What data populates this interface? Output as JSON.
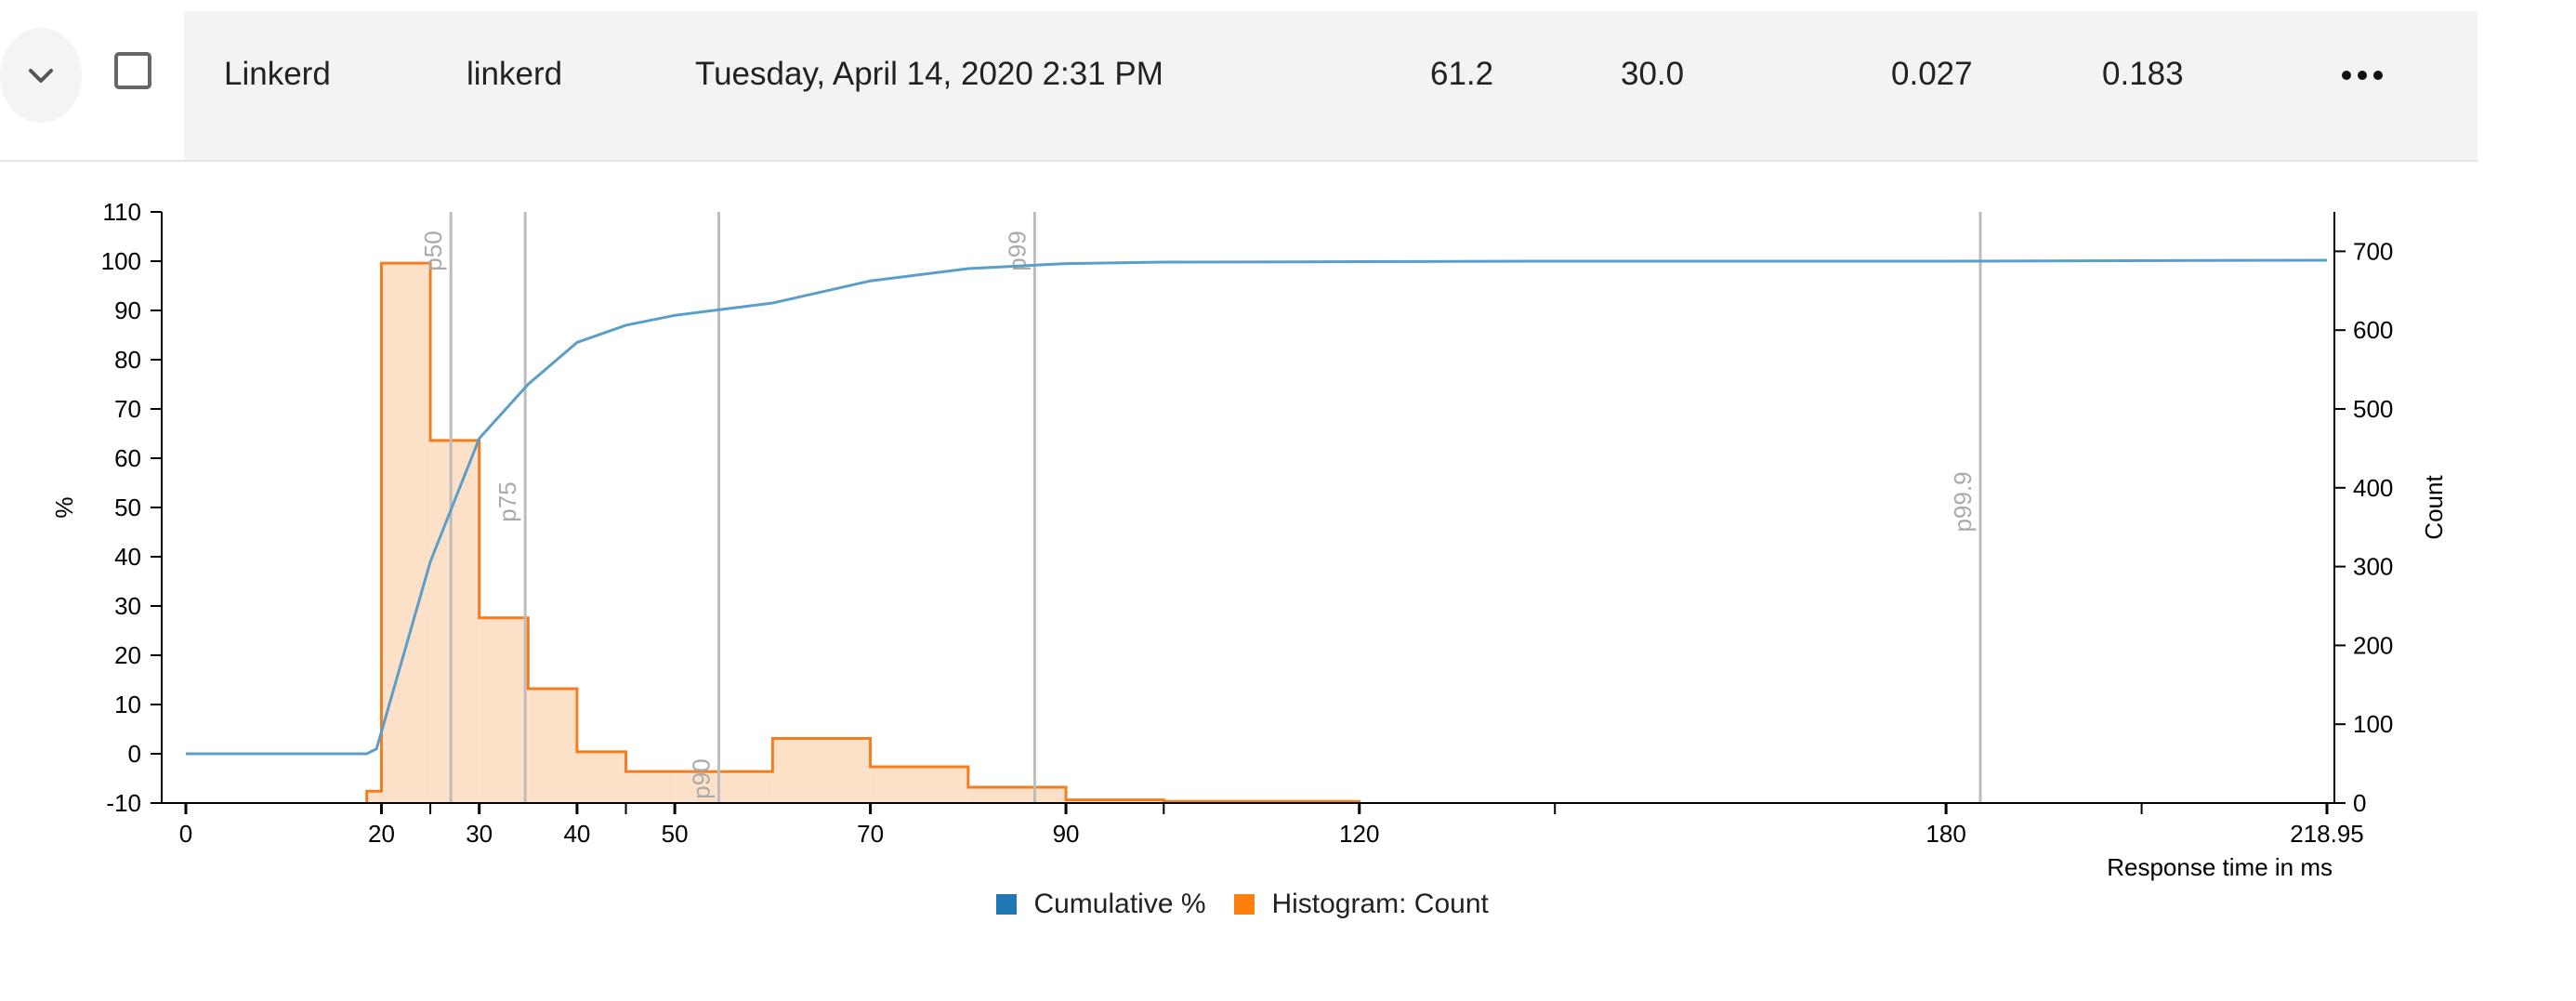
{
  "row": {
    "name": "Linkerd",
    "label": "linkerd",
    "timestamp": "Tuesday, April 14, 2020 2:31 PM",
    "value_1": "61.2",
    "value_2": "30.0",
    "value_3": "0.027",
    "value_4": "0.183",
    "icons": {
      "expand": "chevron-down-icon",
      "more": "more-horizontal-icon"
    }
  },
  "chart_data": {
    "type": "histogram-cumulative",
    "colors": {
      "cumulative": "#5b9ec9",
      "histogram_line": "#f57c1f",
      "histogram_fill": "#fde0c8",
      "percentile_line": "#bdbdbd",
      "axis": "#000000"
    },
    "x_axis": {
      "label": "Response time in ms",
      "range": [
        0,
        218.95
      ],
      "ticks": [
        0,
        20,
        30,
        40,
        50,
        70,
        90,
        120,
        180,
        218.95
      ],
      "tick_labels": [
        "0",
        "20",
        "30",
        "40",
        "50",
        "70",
        "90",
        "120",
        "180",
        "218.95"
      ],
      "minor_ticks": [
        25,
        45,
        100,
        140,
        200
      ]
    },
    "y_left": {
      "label": "%",
      "range": [
        -10,
        110
      ],
      "ticks": [
        -10,
        0,
        10,
        20,
        30,
        40,
        50,
        60,
        70,
        80,
        90,
        100,
        110
      ],
      "tick_labels": [
        "-10",
        "0",
        "10",
        "20",
        "30",
        "40",
        "50",
        "60",
        "70",
        "80",
        "90",
        "100",
        "110"
      ]
    },
    "y_right": {
      "label": "Count",
      "range": [
        0,
        750
      ],
      "ticks": [
        0,
        100,
        200,
        300,
        400,
        500,
        600,
        700
      ],
      "tick_labels": [
        "0",
        "100",
        "200",
        "300",
        "400",
        "500",
        "600",
        "700"
      ]
    },
    "cumulative": {
      "name": "Cumulative %",
      "points": [
        [
          0,
          0
        ],
        [
          18.5,
          0
        ],
        [
          19.5,
          1
        ],
        [
          25,
          39
        ],
        [
          30,
          64
        ],
        [
          35,
          75
        ],
        [
          40,
          83.5
        ],
        [
          45,
          87
        ],
        [
          50,
          89
        ],
        [
          60,
          91.5
        ],
        [
          70,
          96
        ],
        [
          80,
          98.5
        ],
        [
          90,
          99.5
        ],
        [
          100,
          99.8
        ],
        [
          120,
          99.9
        ],
        [
          140,
          100
        ],
        [
          180,
          100
        ],
        [
          218.95,
          100.2
        ]
      ]
    },
    "histogram": {
      "name": "Histogram: Count",
      "bins": [
        [
          18.5,
          20,
          15
        ],
        [
          20,
          25,
          685
        ],
        [
          25,
          30,
          460
        ],
        [
          30,
          35,
          235
        ],
        [
          35,
          40,
          145
        ],
        [
          40,
          45,
          65
        ],
        [
          45,
          50,
          40
        ],
        [
          50,
          60,
          40
        ],
        [
          60,
          70,
          82
        ],
        [
          70,
          80,
          46
        ],
        [
          80,
          90,
          20
        ],
        [
          90,
          100,
          4
        ],
        [
          100,
          120,
          2
        ]
      ]
    },
    "percentiles": [
      {
        "label": "p50",
        "x": 27.1
      },
      {
        "label": "p75",
        "x": 34.7
      },
      {
        "label": "p90",
        "x": 54.5
      },
      {
        "label": "p99",
        "x": 86.8
      },
      {
        "label": "p99.9",
        "x": 183.5
      }
    ],
    "legend": {
      "position": "bottom",
      "items": [
        {
          "label": "Cumulative %",
          "color": "#1f77b4"
        },
        {
          "label": "Histogram: Count",
          "color": "#ff7f0e"
        }
      ]
    }
  }
}
